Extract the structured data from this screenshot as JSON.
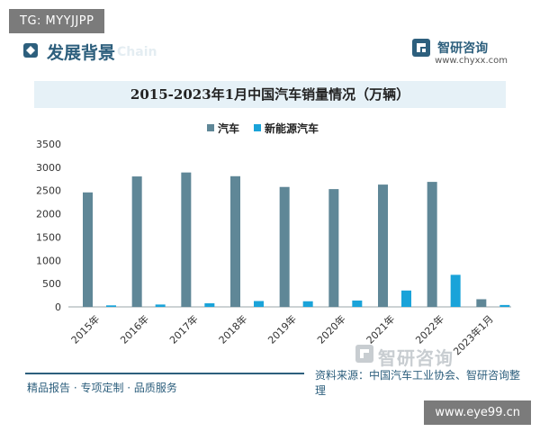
{
  "overlay": {
    "tg_label": "TG: MYYJJPP",
    "site_label": "www.eye99.cn"
  },
  "header": {
    "section_title": "发展背景",
    "section_sub": "Chain",
    "brand_name": "智研咨询",
    "brand_url": "www.chyxx.com"
  },
  "footer": {
    "left": "精品报告 · 专项定制 · 品质服务",
    "source": "资料来源：中国汽车工业协会、智研咨询整理",
    "watermark": "智研咨询"
  },
  "colors": {
    "series_car": "#5f8797",
    "series_nev": "#1aa3d9",
    "accent": "#2d5f7d"
  },
  "chart_data": {
    "type": "bar",
    "title": "2015-2023年1月中国汽车销量情况（万辆）",
    "categories": [
      "2015年",
      "2016年",
      "2017年",
      "2018年",
      "2019年",
      "2020年",
      "2021年",
      "2022年",
      "2023年1月"
    ],
    "series": [
      {
        "name": "汽车",
        "values": [
          2460,
          2803,
          2888,
          2808,
          2577,
          2531,
          2628,
          2686,
          165
        ]
      },
      {
        "name": "新能源汽车",
        "values": [
          33,
          51,
          78,
          126,
          121,
          137,
          352,
          689,
          41
        ]
      }
    ],
    "ylim": [
      0,
      3500
    ],
    "yticks": [
      0,
      500,
      1000,
      1500,
      2000,
      2500,
      3000,
      3500
    ],
    "legend": "top-center",
    "grid": false
  }
}
